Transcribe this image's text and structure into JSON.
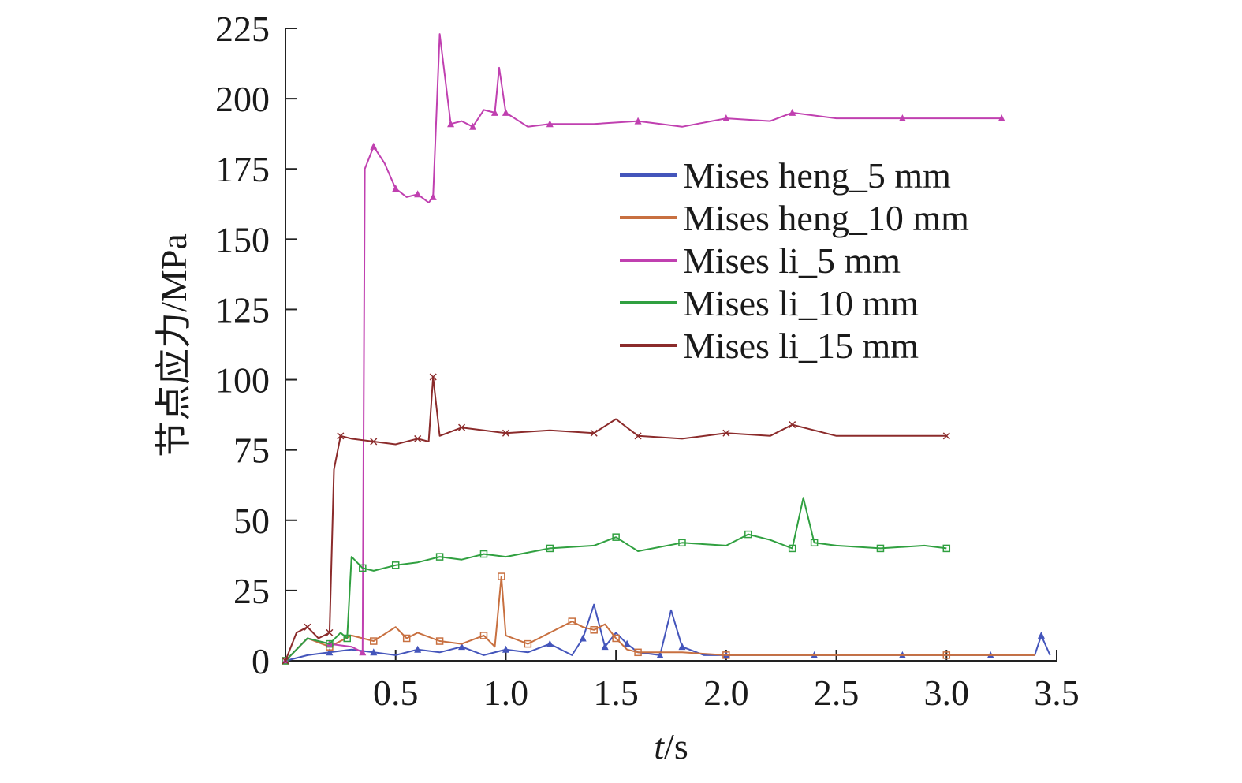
{
  "chart_data": {
    "type": "line",
    "title": "",
    "xlabel": "t/s",
    "xlabel_italic": "t",
    "xlabel_rest": "/s",
    "ylabel": "节点应力/MPa",
    "xlim": [
      0.0,
      3.5
    ],
    "ylim": [
      0,
      225
    ],
    "xticks": [
      0.5,
      1.0,
      1.5,
      2.0,
      2.5,
      3.0,
      3.5
    ],
    "xtick_labels": [
      "0.5",
      "1.0",
      "1.5",
      "2.0",
      "2.5",
      "3.0",
      "3.5"
    ],
    "yticks": [
      0,
      25,
      50,
      75,
      100,
      125,
      150,
      175,
      200,
      225
    ],
    "ytick_labels": [
      "0",
      "25",
      "50",
      "75",
      "100",
      "125",
      "150",
      "175",
      "200",
      "225"
    ],
    "grid": false,
    "legend_position": "top-right",
    "series": [
      {
        "name": "Mises heng_5 mm",
        "color": "#4455bb",
        "marker": "triangle",
        "x": [
          0.0,
          0.1,
          0.2,
          0.3,
          0.4,
          0.5,
          0.6,
          0.7,
          0.8,
          0.9,
          1.0,
          1.1,
          1.2,
          1.3,
          1.35,
          1.4,
          1.45,
          1.5,
          1.55,
          1.6,
          1.7,
          1.75,
          1.8,
          1.9,
          2.0,
          2.2,
          2.4,
          2.6,
          2.8,
          3.0,
          3.2,
          3.4,
          3.43,
          3.47
        ],
        "y": [
          0,
          2,
          3,
          4,
          3,
          2,
          4,
          3,
          5,
          2,
          4,
          3,
          6,
          2,
          8,
          20,
          5,
          10,
          6,
          3,
          2,
          18,
          5,
          2,
          2,
          2,
          2,
          2,
          2,
          2,
          2,
          2,
          9,
          2
        ]
      },
      {
        "name": "Mises heng_10 mm",
        "color": "#c87040",
        "marker": "square",
        "x": [
          0.0,
          0.1,
          0.2,
          0.3,
          0.4,
          0.5,
          0.55,
          0.6,
          0.7,
          0.8,
          0.9,
          0.95,
          0.98,
          1.0,
          1.1,
          1.2,
          1.3,
          1.35,
          1.4,
          1.45,
          1.5,
          1.55,
          1.6,
          1.8,
          2.0,
          2.5,
          3.0,
          3.4
        ],
        "y": [
          0,
          8,
          5,
          9,
          7,
          12,
          8,
          10,
          7,
          6,
          9,
          5,
          30,
          9,
          6,
          10,
          14,
          12,
          11,
          13,
          8,
          4,
          3,
          3,
          2,
          2,
          2,
          2
        ]
      },
      {
        "name": "Mises li_5 mm",
        "color": "#c040b0",
        "marker": "triangle",
        "x": [
          0.0,
          0.1,
          0.2,
          0.3,
          0.35,
          0.36,
          0.4,
          0.45,
          0.5,
          0.55,
          0.6,
          0.65,
          0.67,
          0.7,
          0.75,
          0.8,
          0.85,
          0.9,
          0.95,
          0.97,
          1.0,
          1.1,
          1.2,
          1.4,
          1.6,
          1.8,
          2.0,
          2.2,
          2.3,
          2.5,
          2.8,
          3.0,
          3.25
        ],
        "y": [
          0,
          8,
          6,
          5,
          3,
          175,
          183,
          177,
          168,
          165,
          166,
          163,
          165,
          223,
          191,
          192,
          190,
          196,
          195,
          211,
          195,
          190,
          191,
          191,
          192,
          190,
          193,
          192,
          195,
          193,
          193,
          193,
          193
        ]
      },
      {
        "name": "Mises li_10 mm",
        "color": "#30a040",
        "marker": "square",
        "x": [
          0.0,
          0.1,
          0.2,
          0.25,
          0.28,
          0.3,
          0.35,
          0.4,
          0.5,
          0.6,
          0.7,
          0.8,
          0.9,
          1.0,
          1.2,
          1.4,
          1.5,
          1.6,
          1.8,
          2.0,
          2.1,
          2.2,
          2.3,
          2.35,
          2.4,
          2.5,
          2.7,
          2.9,
          3.0
        ],
        "y": [
          0,
          8,
          6,
          10,
          8,
          37,
          33,
          32,
          34,
          35,
          37,
          36,
          38,
          37,
          40,
          41,
          44,
          39,
          42,
          41,
          45,
          43,
          40,
          58,
          42,
          41,
          40,
          41,
          40
        ]
      },
      {
        "name": "Mises li_15 mm",
        "color": "#8b2b2b",
        "marker": "x",
        "x": [
          0.0,
          0.05,
          0.1,
          0.15,
          0.2,
          0.22,
          0.25,
          0.3,
          0.4,
          0.5,
          0.6,
          0.65,
          0.67,
          0.7,
          0.8,
          0.9,
          1.0,
          1.2,
          1.4,
          1.5,
          1.6,
          1.8,
          2.0,
          2.2,
          2.3,
          2.5,
          3.0
        ],
        "y": [
          0,
          10,
          12,
          8,
          10,
          68,
          80,
          79,
          78,
          77,
          79,
          78,
          101,
          80,
          83,
          82,
          81,
          82,
          81,
          86,
          80,
          79,
          81,
          80,
          84,
          80,
          80
        ]
      }
    ]
  }
}
